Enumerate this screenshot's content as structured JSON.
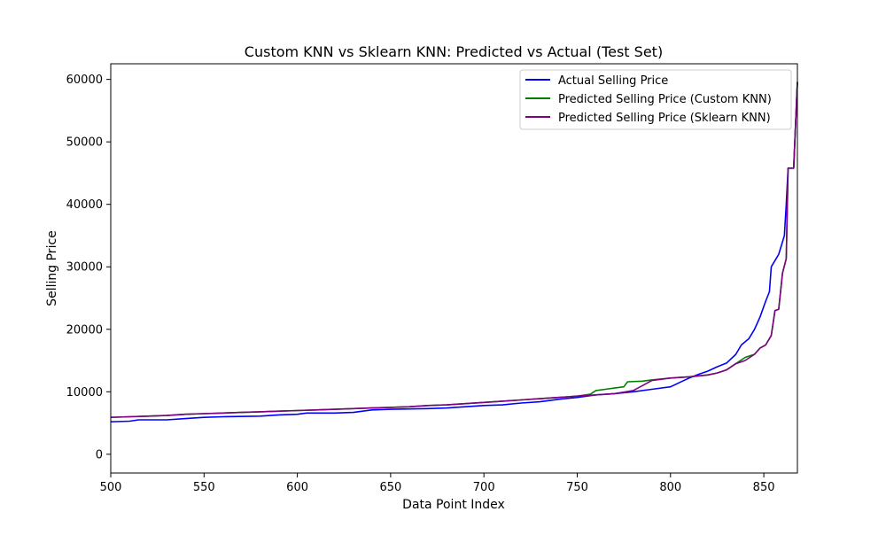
{
  "chart_data": {
    "type": "line",
    "title": "Custom KNN vs Sklearn KNN: Predicted vs Actual (Test Set)",
    "xlabel": "Data Point Index",
    "ylabel": "Selling Price",
    "xlim": [
      500,
      868
    ],
    "ylim": [
      -3000,
      62500
    ],
    "xticks": [
      500,
      550,
      600,
      650,
      700,
      750,
      800,
      850
    ],
    "yticks": [
      0,
      10000,
      20000,
      30000,
      40000,
      50000,
      60000
    ],
    "grid": false,
    "legend_position": "top-right",
    "series": [
      {
        "name": "Actual Selling Price",
        "color": "#0000ff",
        "points": [
          [
            500,
            5200
          ],
          [
            510,
            5300
          ],
          [
            515,
            5500
          ],
          [
            530,
            5500
          ],
          [
            540,
            5700
          ],
          [
            550,
            5900
          ],
          [
            560,
            6000
          ],
          [
            580,
            6100
          ],
          [
            590,
            6300
          ],
          [
            600,
            6400
          ],
          [
            605,
            6600
          ],
          [
            620,
            6600
          ],
          [
            630,
            6700
          ],
          [
            640,
            7100
          ],
          [
            650,
            7200
          ],
          [
            670,
            7300
          ],
          [
            680,
            7400
          ],
          [
            690,
            7600
          ],
          [
            700,
            7800
          ],
          [
            710,
            7900
          ],
          [
            720,
            8200
          ],
          [
            730,
            8400
          ],
          [
            740,
            8800
          ],
          [
            750,
            9100
          ],
          [
            760,
            9500
          ],
          [
            770,
            9700
          ],
          [
            780,
            10000
          ],
          [
            790,
            10400
          ],
          [
            800,
            10800
          ],
          [
            805,
            11500
          ],
          [
            810,
            12200
          ],
          [
            815,
            12800
          ],
          [
            820,
            13300
          ],
          [
            825,
            14000
          ],
          [
            830,
            14600
          ],
          [
            835,
            16000
          ],
          [
            838,
            17500
          ],
          [
            842,
            18500
          ],
          [
            845,
            20000
          ],
          [
            848,
            22000
          ],
          [
            851,
            24500
          ],
          [
            853,
            26000
          ],
          [
            854,
            30000
          ],
          [
            856,
            31000
          ],
          [
            858,
            32000
          ],
          [
            860,
            34000
          ],
          [
            861,
            35000
          ],
          [
            862,
            40000
          ],
          [
            863,
            45800
          ],
          [
            866,
            45800
          ],
          [
            868,
            59600
          ]
        ]
      },
      {
        "name": "Predicted Selling Price (Custom KNN)",
        "color": "#008000",
        "points": [
          [
            500,
            5900
          ],
          [
            510,
            6000
          ],
          [
            520,
            6100
          ],
          [
            530,
            6200
          ],
          [
            540,
            6400
          ],
          [
            550,
            6500
          ],
          [
            560,
            6600
          ],
          [
            570,
            6700
          ],
          [
            580,
            6800
          ],
          [
            590,
            6900
          ],
          [
            600,
            7000
          ],
          [
            610,
            7100
          ],
          [
            620,
            7200
          ],
          [
            630,
            7300
          ],
          [
            640,
            7400
          ],
          [
            650,
            7500
          ],
          [
            660,
            7600
          ],
          [
            670,
            7800
          ],
          [
            680,
            7900
          ],
          [
            690,
            8100
          ],
          [
            700,
            8300
          ],
          [
            710,
            8500
          ],
          [
            720,
            8700
          ],
          [
            730,
            8900
          ],
          [
            740,
            9100
          ],
          [
            750,
            9300
          ],
          [
            757,
            9600
          ],
          [
            760,
            10200
          ],
          [
            765,
            10400
          ],
          [
            770,
            10600
          ],
          [
            775,
            10800
          ],
          [
            777,
            11600
          ],
          [
            785,
            11700
          ],
          [
            790,
            11900
          ],
          [
            800,
            12200
          ],
          [
            810,
            12400
          ],
          [
            820,
            12700
          ],
          [
            825,
            13000
          ],
          [
            830,
            13500
          ],
          [
            835,
            14500
          ],
          [
            840,
            15500
          ],
          [
            845,
            16000
          ],
          [
            848,
            17000
          ],
          [
            851,
            17500
          ],
          [
            854,
            19000
          ],
          [
            856,
            23000
          ],
          [
            858,
            23200
          ],
          [
            860,
            29000
          ],
          [
            862,
            31300
          ],
          [
            863,
            45800
          ],
          [
            866,
            45800
          ],
          [
            868,
            59600
          ]
        ]
      },
      {
        "name": "Predicted Selling Price (Sklearn KNN)",
        "color": "#800080",
        "points": [
          [
            500,
            5900
          ],
          [
            510,
            6000
          ],
          [
            520,
            6100
          ],
          [
            530,
            6200
          ],
          [
            540,
            6400
          ],
          [
            550,
            6500
          ],
          [
            560,
            6600
          ],
          [
            570,
            6700
          ],
          [
            580,
            6800
          ],
          [
            590,
            6900
          ],
          [
            600,
            7000
          ],
          [
            610,
            7100
          ],
          [
            620,
            7200
          ],
          [
            630,
            7300
          ],
          [
            640,
            7400
          ],
          [
            650,
            7500
          ],
          [
            660,
            7600
          ],
          [
            670,
            7800
          ],
          [
            680,
            7900
          ],
          [
            690,
            8100
          ],
          [
            700,
            8300
          ],
          [
            710,
            8500
          ],
          [
            720,
            8700
          ],
          [
            730,
            8900
          ],
          [
            740,
            9100
          ],
          [
            750,
            9300
          ],
          [
            760,
            9500
          ],
          [
            770,
            9700
          ],
          [
            780,
            10200
          ],
          [
            785,
            11000
          ],
          [
            790,
            11800
          ],
          [
            800,
            12200
          ],
          [
            810,
            12400
          ],
          [
            820,
            12700
          ],
          [
            825,
            13000
          ],
          [
            830,
            13500
          ],
          [
            835,
            14500
          ],
          [
            840,
            15000
          ],
          [
            845,
            16000
          ],
          [
            848,
            17000
          ],
          [
            851,
            17500
          ],
          [
            854,
            19000
          ],
          [
            856,
            23000
          ],
          [
            858,
            23200
          ],
          [
            860,
            29000
          ],
          [
            862,
            31300
          ],
          [
            863,
            45800
          ],
          [
            866,
            45800
          ],
          [
            868,
            59600
          ]
        ]
      }
    ]
  }
}
